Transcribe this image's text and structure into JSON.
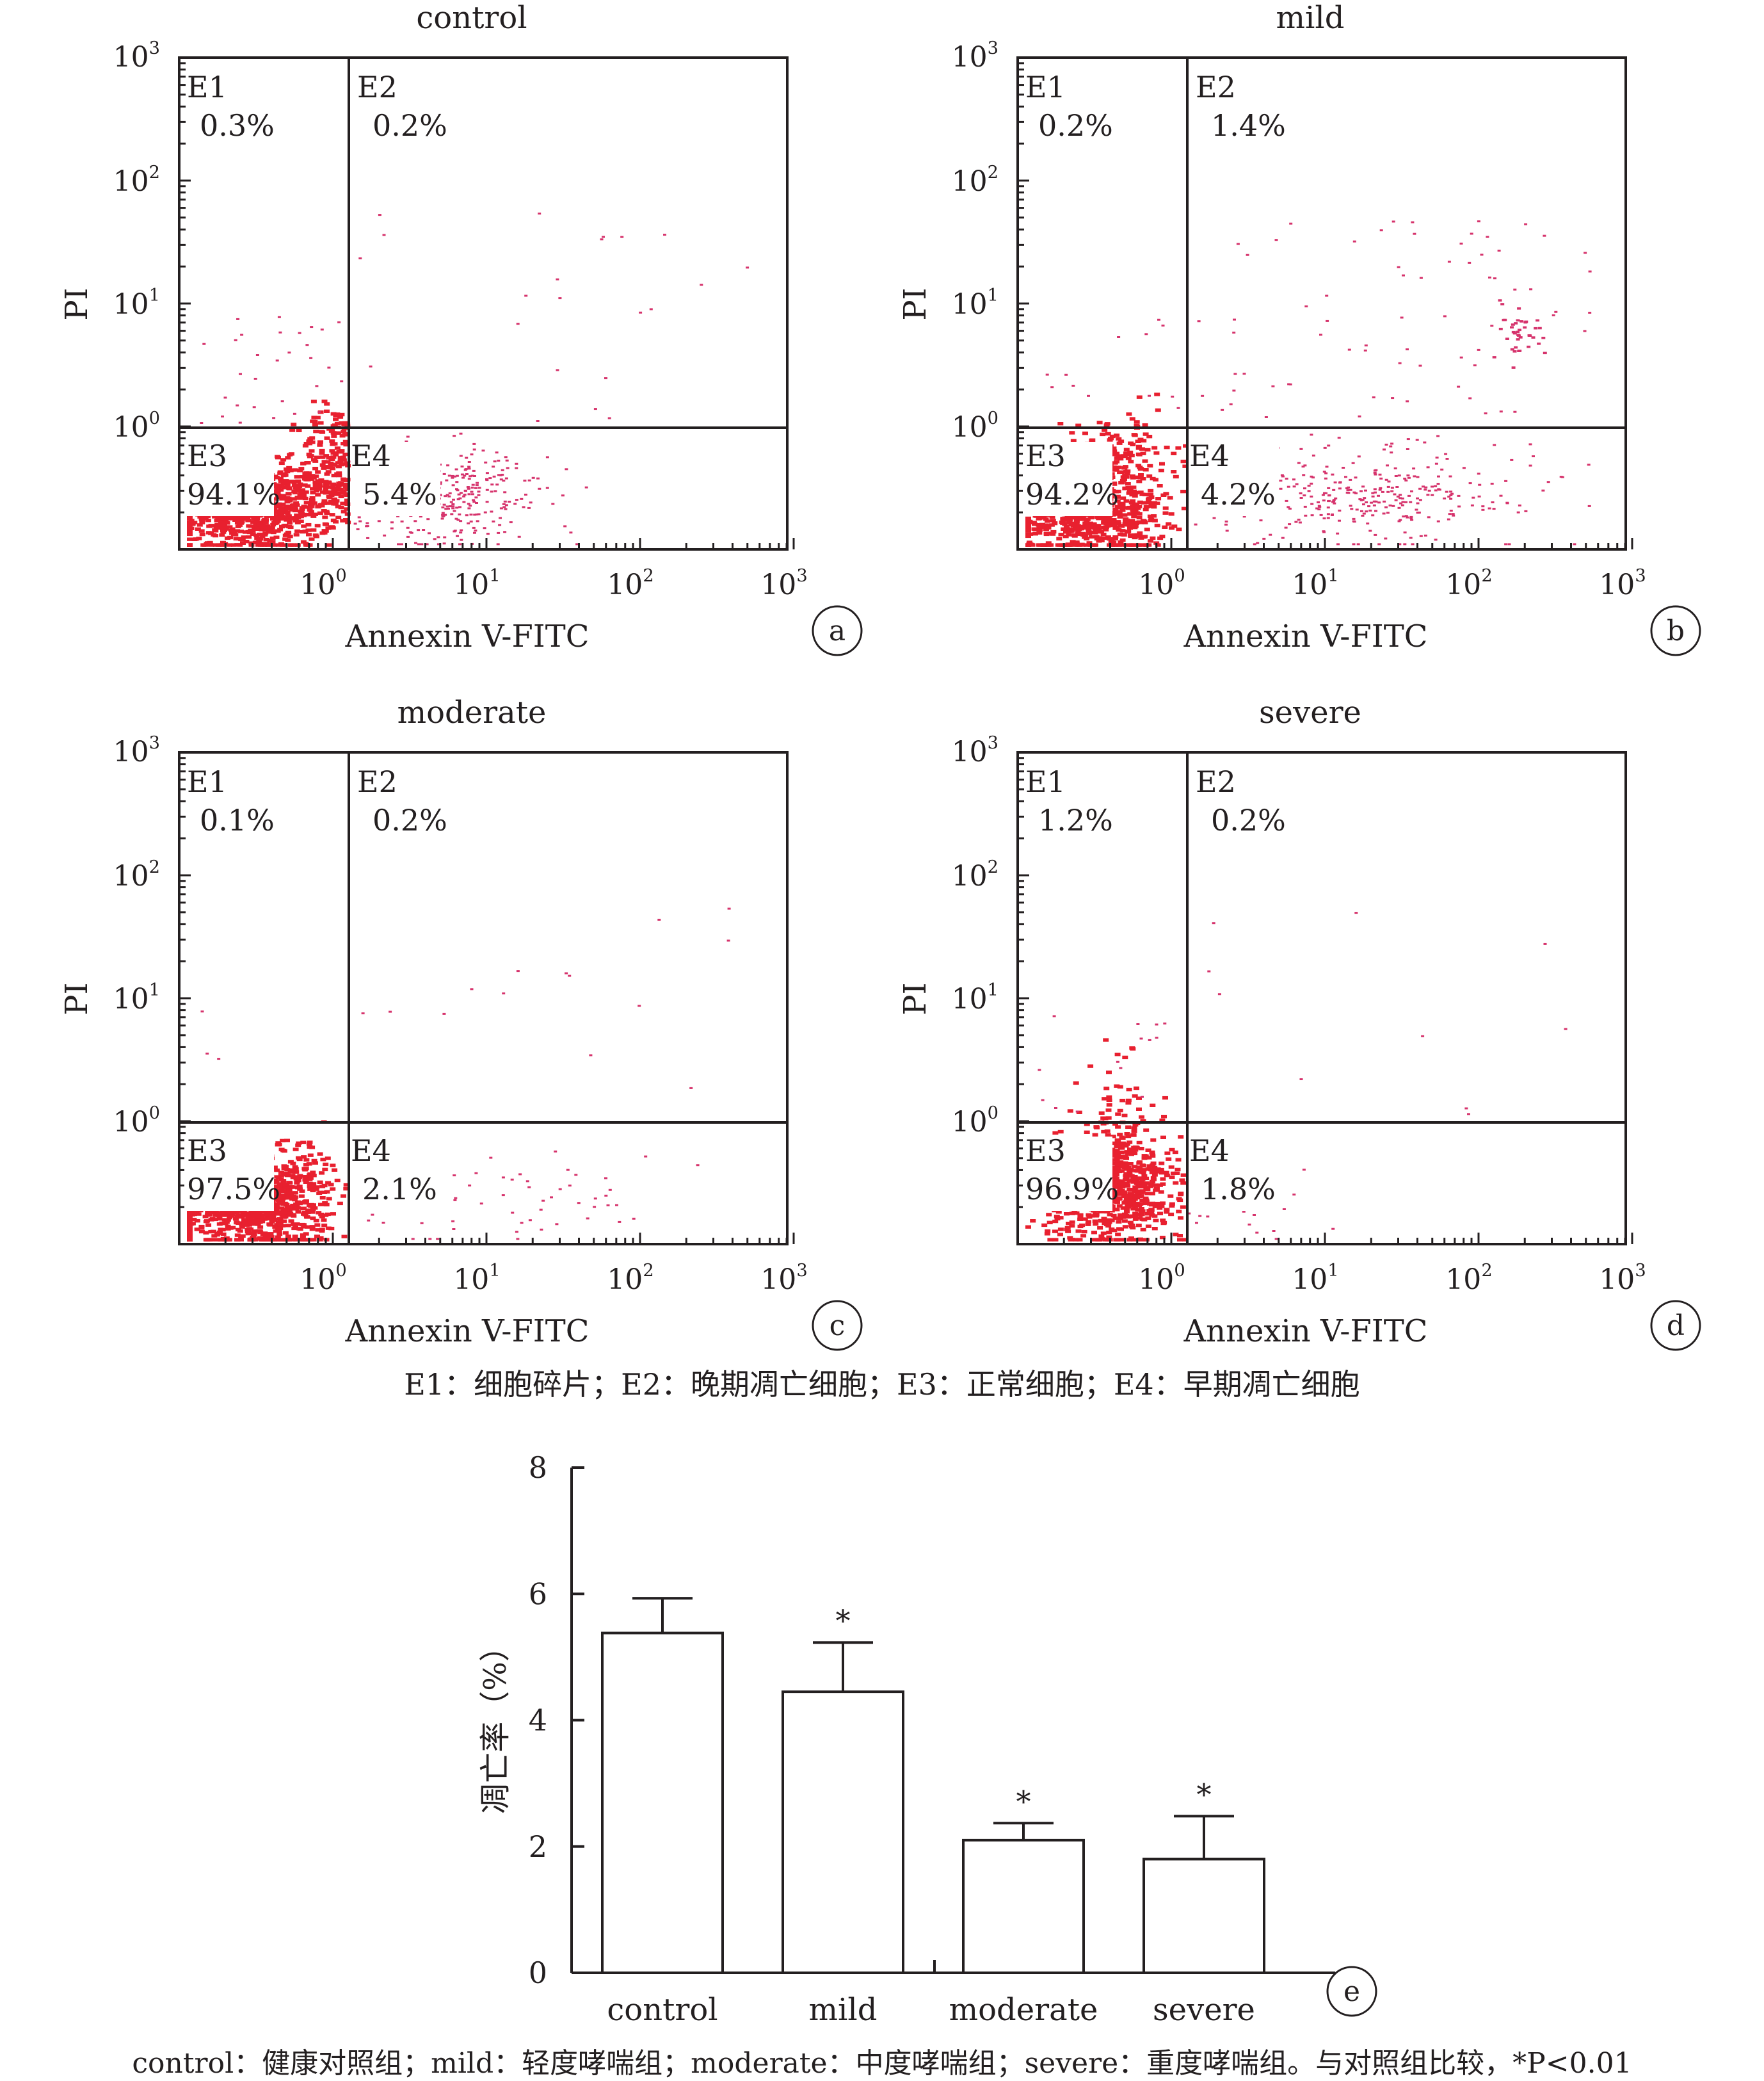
{
  "panels": [
    {
      "title": "control",
      "letter": "a",
      "xlabel": "Annexin V-FITC",
      "ylabel": "PI",
      "quadrants": [
        {
          "label": "E1",
          "value": "0.3%"
        },
        {
          "label": "E2",
          "value": "0.2%"
        },
        {
          "label": "E3",
          "value": "94.1%"
        },
        {
          "label": "E4",
          "value": "5.4%"
        }
      ]
    },
    {
      "title": "mild",
      "letter": "b",
      "xlabel": "Annexin V-FITC",
      "ylabel": "PI",
      "quadrants": [
        {
          "label": "E1",
          "value": "0.2%"
        },
        {
          "label": "E2",
          "value": "1.4%"
        },
        {
          "label": "E3",
          "value": "94.2%"
        },
        {
          "label": "E4",
          "value": "4.2%"
        }
      ]
    },
    {
      "title": "moderate",
      "letter": "c",
      "xlabel": "Annexin V-FITC",
      "ylabel": "PI",
      "quadrants": [
        {
          "label": "E1",
          "value": "0.1%"
        },
        {
          "label": "E2",
          "value": "0.2%"
        },
        {
          "label": "E3",
          "value": "97.5%"
        },
        {
          "label": "E4",
          "value": "2.1%"
        }
      ]
    },
    {
      "title": "severe",
      "letter": "d",
      "xlabel": "Annexin V-FITC",
      "ylabel": "PI",
      "quadrants": [
        {
          "label": "E1",
          "value": "1.2%"
        },
        {
          "label": "E2",
          "value": "0.2%"
        },
        {
          "label": "E3",
          "value": "96.9%"
        },
        {
          "label": "E4",
          "value": "1.8%"
        }
      ]
    }
  ],
  "flow_axis_ticks": {
    "x": [
      "10^0",
      "10^1",
      "10^2",
      "10^3"
    ],
    "y": [
      "10^0",
      "10^1",
      "10^2",
      "10^3"
    ]
  },
  "legend_top": "E1：细胞碎片；E2：晚期凋亡细胞；E3：正常细胞；E4：早期凋亡细胞",
  "legend_bottom": "control：健康对照组；mild：轻度哮喘组；moderate：中度哮喘组；severe：重度哮喘组。与对照组比较，*P<0.01",
  "colors": {
    "dots": "#e8202f",
    "scatter": "#d6336c",
    "axis": "#231f20"
  },
  "chart_data": [
    {
      "type": "scatter",
      "title": "control",
      "xlabel": "Annexin V-FITC",
      "ylabel": "PI",
      "scale": "log",
      "xlim": [
        0.1,
        1000
      ],
      "ylim": [
        0.1,
        1000
      ],
      "quadrant_gates": {
        "x": 1.2,
        "y": 1.0
      },
      "quadrants": {
        "E1": 0.3,
        "E2": 0.2,
        "E3": 94.1,
        "E4": 5.4
      }
    },
    {
      "type": "scatter",
      "title": "mild",
      "xlabel": "Annexin V-FITC",
      "ylabel": "PI",
      "scale": "log",
      "xlim": [
        0.1,
        1000
      ],
      "ylim": [
        0.1,
        1000
      ],
      "quadrant_gates": {
        "x": 1.2,
        "y": 1.0
      },
      "quadrants": {
        "E1": 0.2,
        "E2": 1.4,
        "E3": 94.2,
        "E4": 4.2
      }
    },
    {
      "type": "scatter",
      "title": "moderate",
      "xlabel": "Annexin V-FITC",
      "ylabel": "PI",
      "scale": "log",
      "xlim": [
        0.1,
        1000
      ],
      "ylim": [
        0.1,
        1000
      ],
      "quadrant_gates": {
        "x": 1.2,
        "y": 1.0
      },
      "quadrants": {
        "E1": 0.1,
        "E2": 0.2,
        "E3": 97.5,
        "E4": 2.1
      }
    },
    {
      "type": "scatter",
      "title": "severe",
      "xlabel": "Annexin V-FITC",
      "ylabel": "PI",
      "scale": "log",
      "xlim": [
        0.1,
        1000
      ],
      "ylim": [
        0.1,
        1000
      ],
      "quadrant_gates": {
        "x": 1.2,
        "y": 1.0
      },
      "quadrants": {
        "E1": 1.2,
        "E2": 0.2,
        "E3": 96.9,
        "E4": 1.8
      }
    },
    {
      "type": "bar",
      "letter": "e",
      "categories": [
        "control",
        "mild",
        "moderate",
        "severe"
      ],
      "values": [
        5.38,
        4.45,
        2.1,
        1.8
      ],
      "errors": [
        0.55,
        0.78,
        0.27,
        0.68
      ],
      "significance": [
        "",
        "*",
        "*",
        "*"
      ],
      "ylabel": "凋亡率（%）",
      "ylim": [
        0,
        8
      ],
      "yticks": [
        0,
        2,
        4,
        6,
        8
      ]
    }
  ]
}
